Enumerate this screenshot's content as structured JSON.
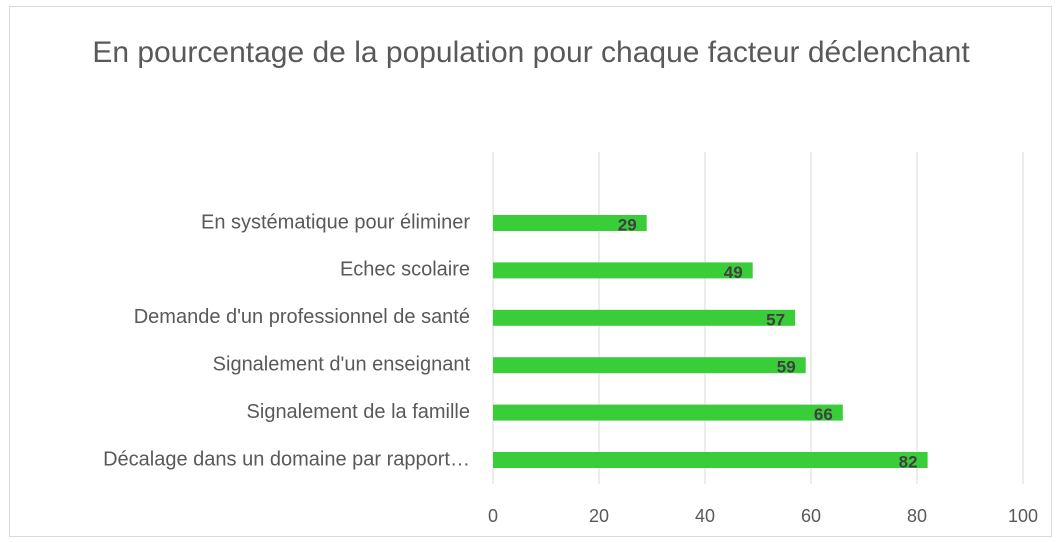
{
  "chart_data": {
    "type": "bar",
    "orientation": "horizontal",
    "title": "En pourcentage de la population pour chaque facteur déclenchant",
    "categories": [
      "En systématique pour éliminer",
      "Echec scolaire",
      "Demande d'un professionnel de santé",
      "Signalement d'un enseignant",
      "Signalement de la famille",
      "Décalage dans un domaine par rapport…"
    ],
    "values": [
      29,
      49,
      57,
      59,
      66,
      82
    ],
    "color": "#3acd3a",
    "xlim": [
      0,
      100
    ],
    "xticks": [
      0,
      20,
      40,
      60,
      80,
      100
    ],
    "grid": true
  }
}
